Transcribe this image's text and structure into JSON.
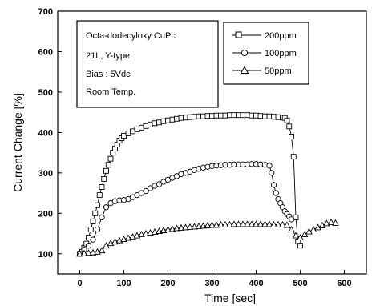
{
  "chart_data": {
    "type": "scatter",
    "xlabel": "Time [sec]",
    "ylabel": "Current Change [%]",
    "xlim": [
      -50,
      650
    ],
    "ylim": [
      50,
      700
    ],
    "xticks": [
      0,
      100,
      200,
      300,
      400,
      500,
      600
    ],
    "yticks": [
      100,
      200,
      300,
      400,
      500,
      600,
      700
    ],
    "info_lines": [
      "Octa-dodecyloxy CuPc",
      "21L, Y-type",
      "Bias : 5Vdc",
      "Room Temp."
    ],
    "legend_position": "top-right",
    "series": [
      {
        "name": "200ppm",
        "marker": "square",
        "x": [
          0,
          5,
          10,
          15,
          20,
          25,
          30,
          35,
          40,
          45,
          50,
          55,
          60,
          65,
          70,
          75,
          80,
          85,
          90,
          95,
          100,
          110,
          120,
          130,
          140,
          150,
          160,
          170,
          180,
          190,
          200,
          210,
          220,
          230,
          240,
          250,
          260,
          270,
          280,
          290,
          300,
          310,
          320,
          330,
          340,
          350,
          360,
          370,
          380,
          390,
          400,
          410,
          420,
          430,
          440,
          450,
          460,
          465,
          470,
          475,
          480,
          485,
          490,
          495,
          500
        ],
        "y": [
          100,
          105,
          115,
          125,
          140,
          160,
          180,
          200,
          220,
          245,
          265,
          285,
          305,
          320,
          335,
          350,
          360,
          370,
          380,
          386,
          392,
          398,
          403,
          408,
          412,
          416,
          420,
          423,
          425,
          428,
          430,
          432,
          434,
          436,
          437,
          438,
          439,
          440,
          440,
          441,
          441,
          442,
          442,
          442,
          443,
          443,
          443,
          443,
          443,
          442,
          442,
          441,
          440,
          440,
          439,
          438,
          437,
          436,
          430,
          415,
          390,
          340,
          190,
          130,
          120
        ]
      },
      {
        "name": "100ppm",
        "marker": "circle",
        "x": [
          0,
          10,
          20,
          30,
          40,
          50,
          60,
          70,
          80,
          90,
          100,
          110,
          120,
          130,
          140,
          150,
          160,
          170,
          180,
          190,
          200,
          210,
          220,
          230,
          240,
          250,
          260,
          270,
          280,
          290,
          300,
          310,
          320,
          330,
          340,
          350,
          360,
          370,
          380,
          390,
          400,
          410,
          420,
          430,
          435,
          440,
          445,
          450,
          455,
          460,
          465,
          470,
          475,
          480
        ],
        "y": [
          100,
          110,
          120,
          135,
          160,
          190,
          215,
          225,
          230,
          232,
          233,
          235,
          240,
          245,
          250,
          255,
          262,
          268,
          272,
          278,
          283,
          288,
          292,
          297,
          300,
          303,
          307,
          310,
          313,
          315,
          317,
          318,
          319,
          320,
          320,
          321,
          321,
          321,
          321,
          322,
          322,
          321,
          320,
          318,
          300,
          270,
          250,
          235,
          225,
          215,
          205,
          198,
          192,
          185
        ]
      },
      {
        "name": "50ppm",
        "marker": "triangle",
        "x": [
          0,
          10,
          20,
          30,
          40,
          50,
          60,
          70,
          80,
          90,
          100,
          110,
          120,
          130,
          140,
          150,
          160,
          170,
          180,
          190,
          200,
          210,
          220,
          230,
          240,
          250,
          260,
          270,
          280,
          290,
          300,
          310,
          320,
          330,
          340,
          350,
          360,
          370,
          380,
          390,
          400,
          410,
          420,
          430,
          440,
          450,
          460,
          470,
          480,
          490,
          500,
          510,
          520,
          530,
          540,
          550,
          560,
          570,
          580
        ],
        "y": [
          100,
          101,
          102,
          103,
          105,
          108,
          120,
          126,
          130,
          133,
          136,
          139,
          142,
          145,
          148,
          150,
          152,
          154,
          156,
          158,
          160,
          161,
          163,
          164,
          165,
          166,
          167,
          168,
          169,
          170,
          171,
          171,
          172,
          172,
          172,
          173,
          173,
          173,
          173,
          173,
          173,
          173,
          173,
          173,
          172,
          172,
          172,
          171,
          160,
          145,
          140,
          148,
          155,
          160,
          165,
          170,
          175,
          178,
          176
        ]
      }
    ]
  }
}
